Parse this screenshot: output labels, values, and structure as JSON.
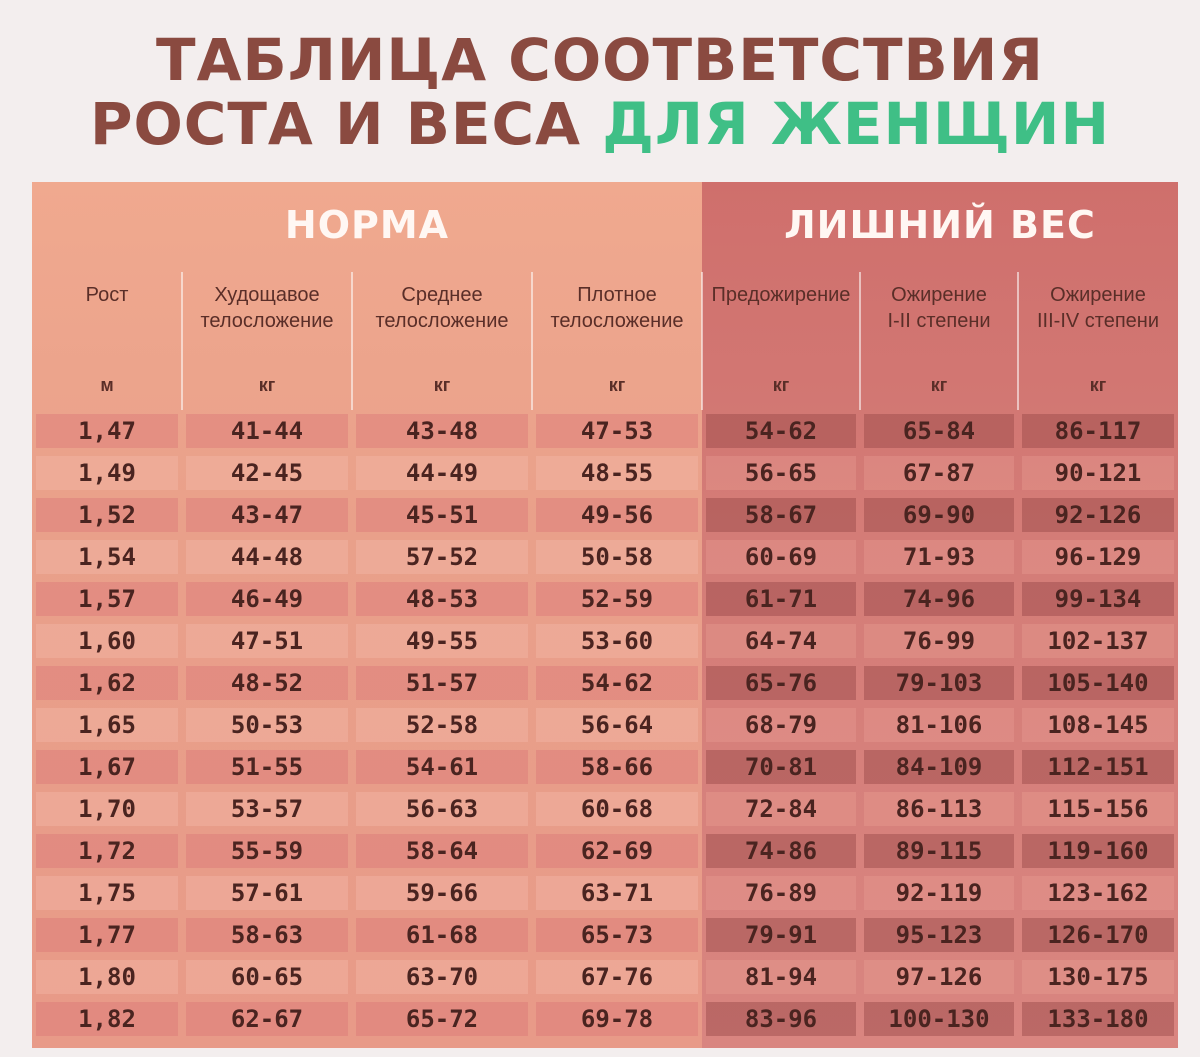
{
  "title": {
    "line1": "ТАБЛИЦА СООТВЕТСТВИЯ",
    "line2_main": "РОСТА И ВЕСА ",
    "line2_accent": "ДЛЯ ЖЕНЩИН"
  },
  "colors": {
    "title": "#8a4a40",
    "accent": "#3fbf86",
    "norma_bg": "#eba18b",
    "excess_bg": "#d37a75"
  },
  "chart_data": {
    "type": "table",
    "groups": [
      {
        "label": "НОРМА",
        "columns": [
          0,
          1,
          2,
          3
        ]
      },
      {
        "label": "ЛИШНИЙ ВЕС",
        "columns": [
          4,
          5,
          6
        ]
      }
    ],
    "columns": [
      {
        "header_lines": [
          "Рост"
        ],
        "unit": "м"
      },
      {
        "header_lines": [
          "Худощавое",
          "телосложение"
        ],
        "unit": "кг"
      },
      {
        "header_lines": [
          "Среднее",
          "телосложение"
        ],
        "unit": "кг"
      },
      {
        "header_lines": [
          "Плотное",
          "телосложение"
        ],
        "unit": "кг"
      },
      {
        "header_lines": [
          "Предожирение"
        ],
        "unit": "кг"
      },
      {
        "header_lines": [
          "Ожирение",
          "I-II степени"
        ],
        "unit": "кг"
      },
      {
        "header_lines": [
          "Ожирение",
          "III-IV степени"
        ],
        "unit": "кг"
      }
    ],
    "rows": [
      [
        "1,47",
        "41-44",
        "43-48",
        "47-53",
        "54-62",
        "65-84",
        "86-117"
      ],
      [
        "1,49",
        "42-45",
        "44-49",
        "48-55",
        "56-65",
        "67-87",
        "90-121"
      ],
      [
        "1,52",
        "43-47",
        "45-51",
        "49-56",
        "58-67",
        "69-90",
        "92-126"
      ],
      [
        "1,54",
        "44-48",
        "57-52",
        "50-58",
        "60-69",
        "71-93",
        "96-129"
      ],
      [
        "1,57",
        "46-49",
        "48-53",
        "52-59",
        "61-71",
        "74-96",
        "99-134"
      ],
      [
        "1,60",
        "47-51",
        "49-55",
        "53-60",
        "64-74",
        "76-99",
        "102-137"
      ],
      [
        "1,62",
        "48-52",
        "51-57",
        "54-62",
        "65-76",
        "79-103",
        "105-140"
      ],
      [
        "1,65",
        "50-53",
        "52-58",
        "56-64",
        "68-79",
        "81-106",
        "108-145"
      ],
      [
        "1,67",
        "51-55",
        "54-61",
        "58-66",
        "70-81",
        "84-109",
        "112-151"
      ],
      [
        "1,70",
        "53-57",
        "56-63",
        "60-68",
        "72-84",
        "86-113",
        "115-156"
      ],
      [
        "1,72",
        "55-59",
        "58-64",
        "62-69",
        "74-86",
        "89-115",
        "119-160"
      ],
      [
        "1,75",
        "57-61",
        "59-66",
        "63-71",
        "76-89",
        "92-119",
        "123-162"
      ],
      [
        "1,77",
        "58-63",
        "61-68",
        "65-73",
        "79-91",
        "95-123",
        "126-170"
      ],
      [
        "1,80",
        "60-65",
        "63-70",
        "67-76",
        "81-94",
        "97-126",
        "130-175"
      ],
      [
        "1,82",
        "62-67",
        "65-72",
        "69-78",
        "83-96",
        "100-130",
        "133-180"
      ]
    ]
  }
}
